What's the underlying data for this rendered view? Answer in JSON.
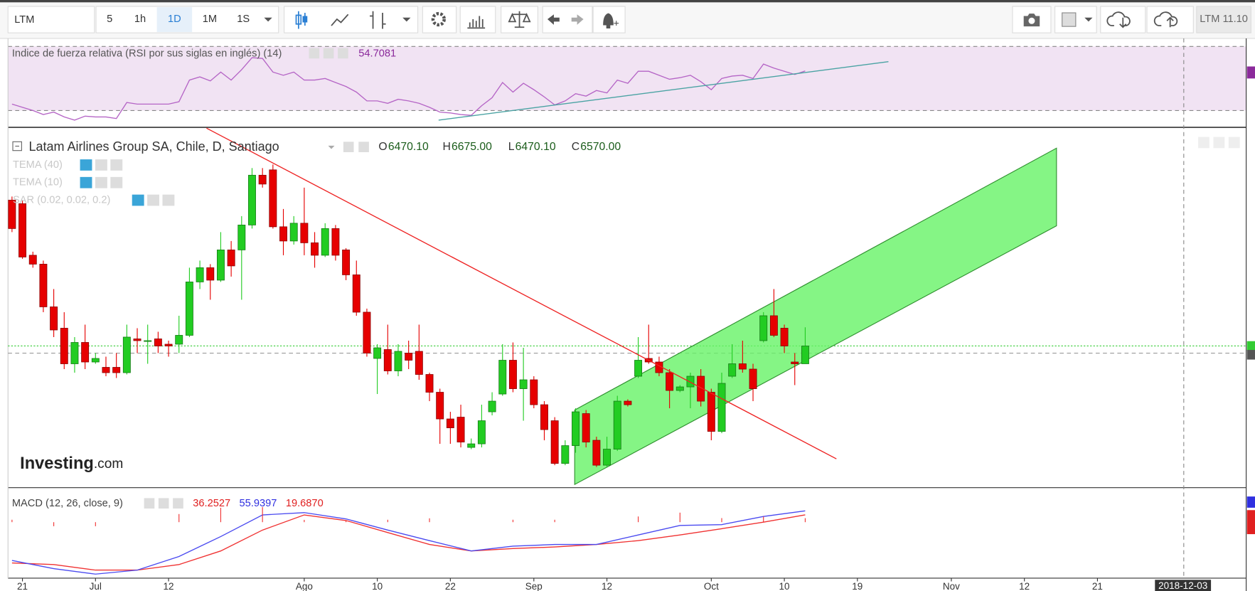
{
  "toolbar": {
    "symbol": "LTM",
    "intervals": [
      "5",
      "1h",
      "1D",
      "1M",
      "1S"
    ],
    "active": 2,
    "quote": "LTM 11.10"
  },
  "chart_data": [
    {
      "type": "line",
      "title": "Indice de fuerza relativa (RSI por sus siglas en inglés) (14)",
      "ylim": [
        20,
        74
      ],
      "levels": [
        70,
        30
      ],
      "background": "#f1e3f3",
      "series": [
        {
          "color": "#b565c6",
          "values": [
            34,
            32,
            30,
            27.5,
            29,
            26,
            24,
            26.5,
            26,
            26,
            25,
            35,
            34,
            34,
            34,
            34,
            35.5,
            49,
            51,
            48.5,
            54,
            49,
            55.5,
            63,
            62.5,
            54,
            52,
            54,
            49,
            49,
            50,
            47.5,
            45,
            41.5,
            36,
            36,
            34.5,
            37,
            36,
            34.5,
            32,
            29,
            28.5,
            27.5,
            27,
            33,
            38,
            47.5,
            41.5,
            47,
            43,
            38.5,
            33.5,
            36,
            40.5,
            39,
            42.5,
            41,
            49,
            47,
            54.5,
            54.5,
            52,
            49.5,
            50.5,
            52,
            48,
            43,
            50,
            51.5,
            52,
            50,
            59,
            56.5,
            54.5,
            52.5,
            54.7081
          ]
        }
      ]
    },
    {
      "type": "candlestick",
      "title": "Latam Airlines Group SA, Chile, D, Santiago",
      "ylim": [
        5778,
        7772
      ],
      "legend_values": [
        {
          "name": "O",
          "value_label": "6470.10"
        },
        {
          "name": "H",
          "value_label": "6675.00"
        },
        {
          "name": "L",
          "value_label": "6470.10"
        },
        {
          "name": "C",
          "value_label": "6570.00"
        }
      ],
      "indicators": [
        "TEMA (40)",
        "TEMA (10)",
        "SAR (0.02, 0.02, 0.2)"
      ],
      "up_color": "#22cc22",
      "down_color": "#e60000",
      "open": [
        7390,
        7370,
        7080,
        7030,
        6790,
        6670,
        6470,
        6590,
        6480,
        6450,
        6450,
        6420,
        6610,
        6600,
        6610,
        6580,
        6580,
        6630,
        6930,
        7010,
        6940,
        7110,
        7110,
        7250,
        7530,
        7560,
        7240,
        7160,
        7260,
        7150,
        7080,
        7230,
        7110,
        6970,
        6760,
        6500,
        6550,
        6430,
        6530,
        6540,
        6410,
        6310,
        6160,
        6170,
        6000,
        6020,
        6200,
        6300,
        6490,
        6330,
        6380,
        6240,
        6150,
        5910,
        6010,
        6190,
        6040,
        5900,
        5990,
        6260,
        6400,
        6500,
        6480,
        6420,
        6320,
        6340,
        6400,
        6310,
        6090,
        6400,
        6470,
        6440,
        6600,
        6740,
        6670,
        6480,
        6470.1
      ],
      "high": [
        7410,
        7390,
        7100,
        7050,
        6890,
        6760,
        6620,
        6690,
        6530,
        6510,
        6530,
        6690,
        6670,
        6690,
        6650,
        6600,
        6740,
        7010,
        7050,
        7030,
        7210,
        7160,
        7300,
        7570,
        7570,
        7590,
        7340,
        7300,
        7460,
        7210,
        7260,
        7250,
        7120,
        7050,
        6780,
        6580,
        6690,
        6580,
        6600,
        6690,
        6420,
        6330,
        6200,
        6240,
        6050,
        6240,
        6310,
        6580,
        6590,
        6560,
        6400,
        6260,
        6170,
        6040,
        6220,
        6210,
        6060,
        6060,
        6290,
        6270,
        6620,
        6690,
        6510,
        6440,
        6350,
        6420,
        6440,
        6330,
        6420,
        6580,
        6600,
        6470,
        6760,
        6890,
        6690,
        6530,
        6675
      ],
      "low": [
        7210,
        7060,
        7010,
        6760,
        6620,
        6440,
        6420,
        6440,
        6470,
        6400,
        6390,
        6410,
        6530,
        6470,
        6530,
        6510,
        6530,
        6620,
        6890,
        6830,
        6930,
        6960,
        6830,
        7230,
        7460,
        7230,
        7080,
        7140,
        7080,
        7010,
        7070,
        7050,
        6940,
        6740,
        6510,
        6300,
        6410,
        6400,
        6440,
        6380,
        6260,
        6020,
        6020,
        6000,
        5990,
        6000,
        6180,
        6290,
        6310,
        6150,
        6220,
        6040,
        5900,
        5900,
        5970,
        6000,
        5890,
        5890,
        5980,
        6230,
        6390,
        6470,
        6400,
        6220,
        6310,
        6220,
        6230,
        6040,
        6080,
        6390,
        6420,
        6260,
        6590,
        6620,
        6530,
        6350,
        6470.1
      ],
      "close": [
        7230,
        7070,
        7030,
        6790,
        6660,
        6470,
        6590,
        6480,
        6500,
        6420,
        6420,
        6620,
        6600,
        6600,
        6570,
        6570,
        6630,
        6930,
        7010,
        6940,
        7110,
        7020,
        7250,
        7530,
        7480,
        7240,
        7160,
        7260,
        7150,
        7080,
        7230,
        7080,
        6970,
        6760,
        6530,
        6560,
        6430,
        6540,
        6490,
        6410,
        6310,
        6160,
        6110,
        6030,
        6020,
        6150,
        6260,
        6490,
        6330,
        6380,
        6240,
        6100,
        5910,
        6010,
        6200,
        6030,
        5900,
        5990,
        6260,
        6240,
        6490,
        6480,
        6420,
        6320,
        6340,
        6400,
        6260,
        6090,
        6360,
        6470,
        6440,
        6330,
        6740,
        6630,
        6570,
        6470,
        6570
      ],
      "watermark": [
        "Investing",
        ".com"
      ]
    },
    {
      "type": "macd",
      "title": "MACD (12, 26, close, 9)",
      "ylim": [
        -276,
        158
      ],
      "series": [
        {
          "color": "#f03232",
          "x": [
            0,
            4,
            8,
            12,
            16,
            20,
            24,
            28,
            32,
            36,
            40,
            44,
            48,
            52,
            56,
            60,
            64,
            68,
            72,
            76
          ],
          "values": [
            -201,
            -209,
            -236,
            -236,
            -209,
            -142,
            -39,
            35.5,
            8,
            -51,
            -110,
            -142,
            -130,
            -122,
            -110,
            -91,
            -63,
            -32,
            0,
            36.2527
          ]
        },
        {
          "color": "#4a4af0",
          "x": [
            0,
            4,
            8,
            12,
            16,
            20,
            24,
            28,
            32,
            36,
            40,
            44,
            48,
            52,
            56,
            60,
            64,
            68,
            72,
            76
          ],
          "values": [
            -189,
            -229,
            -256,
            -236,
            -169,
            -71,
            35.5,
            47,
            16,
            -39,
            -91,
            -142,
            -118,
            -110,
            -110,
            -63,
            -16,
            -12,
            28,
            55.9397
          ]
        },
        {
          "type": "histogram",
          "color": "#f03232",
          "x": [
            0,
            4,
            8,
            12,
            16,
            20,
            24,
            28,
            32,
            36,
            40,
            44,
            48,
            52,
            56,
            60,
            64,
            68,
            72,
            76
          ],
          "values": [
            12,
            -20,
            -20,
            0,
            40,
            71,
            74.5,
            11.5,
            8,
            12,
            19,
            0,
            12,
            12,
            0,
            28,
            47,
            20,
            28,
            19.687
          ],
          "value_labels": [
            null,
            null,
            null,
            null,
            null,
            null,
            null,
            null,
            null,
            null,
            null,
            null,
            null,
            null,
            null,
            null,
            null,
            null,
            null,
            "19.6870"
          ]
        }
      ],
      "xticks": [
        {
          "value": 1,
          "label": "21"
        },
        {
          "value": 8,
          "label": "Jul"
        },
        {
          "value": 15,
          "label": "12"
        },
        {
          "value": 28,
          "label": "Ago"
        },
        {
          "value": 35,
          "label": "10"
        },
        {
          "value": 42,
          "label": "22"
        },
        {
          "value": 50,
          "label": "Sep"
        },
        {
          "value": 57,
          "label": "12"
        },
        {
          "value": 67,
          "label": "Oct"
        },
        {
          "value": 74,
          "label": "10"
        },
        {
          "value": 81,
          "label": "19"
        },
        {
          "value": 90,
          "label": "Nov"
        },
        {
          "value": 97,
          "label": "12"
        },
        {
          "value": 104,
          "label": "21"
        }
      ]
    }
  ],
  "crosshair": {
    "label": "2018-12-03"
  }
}
